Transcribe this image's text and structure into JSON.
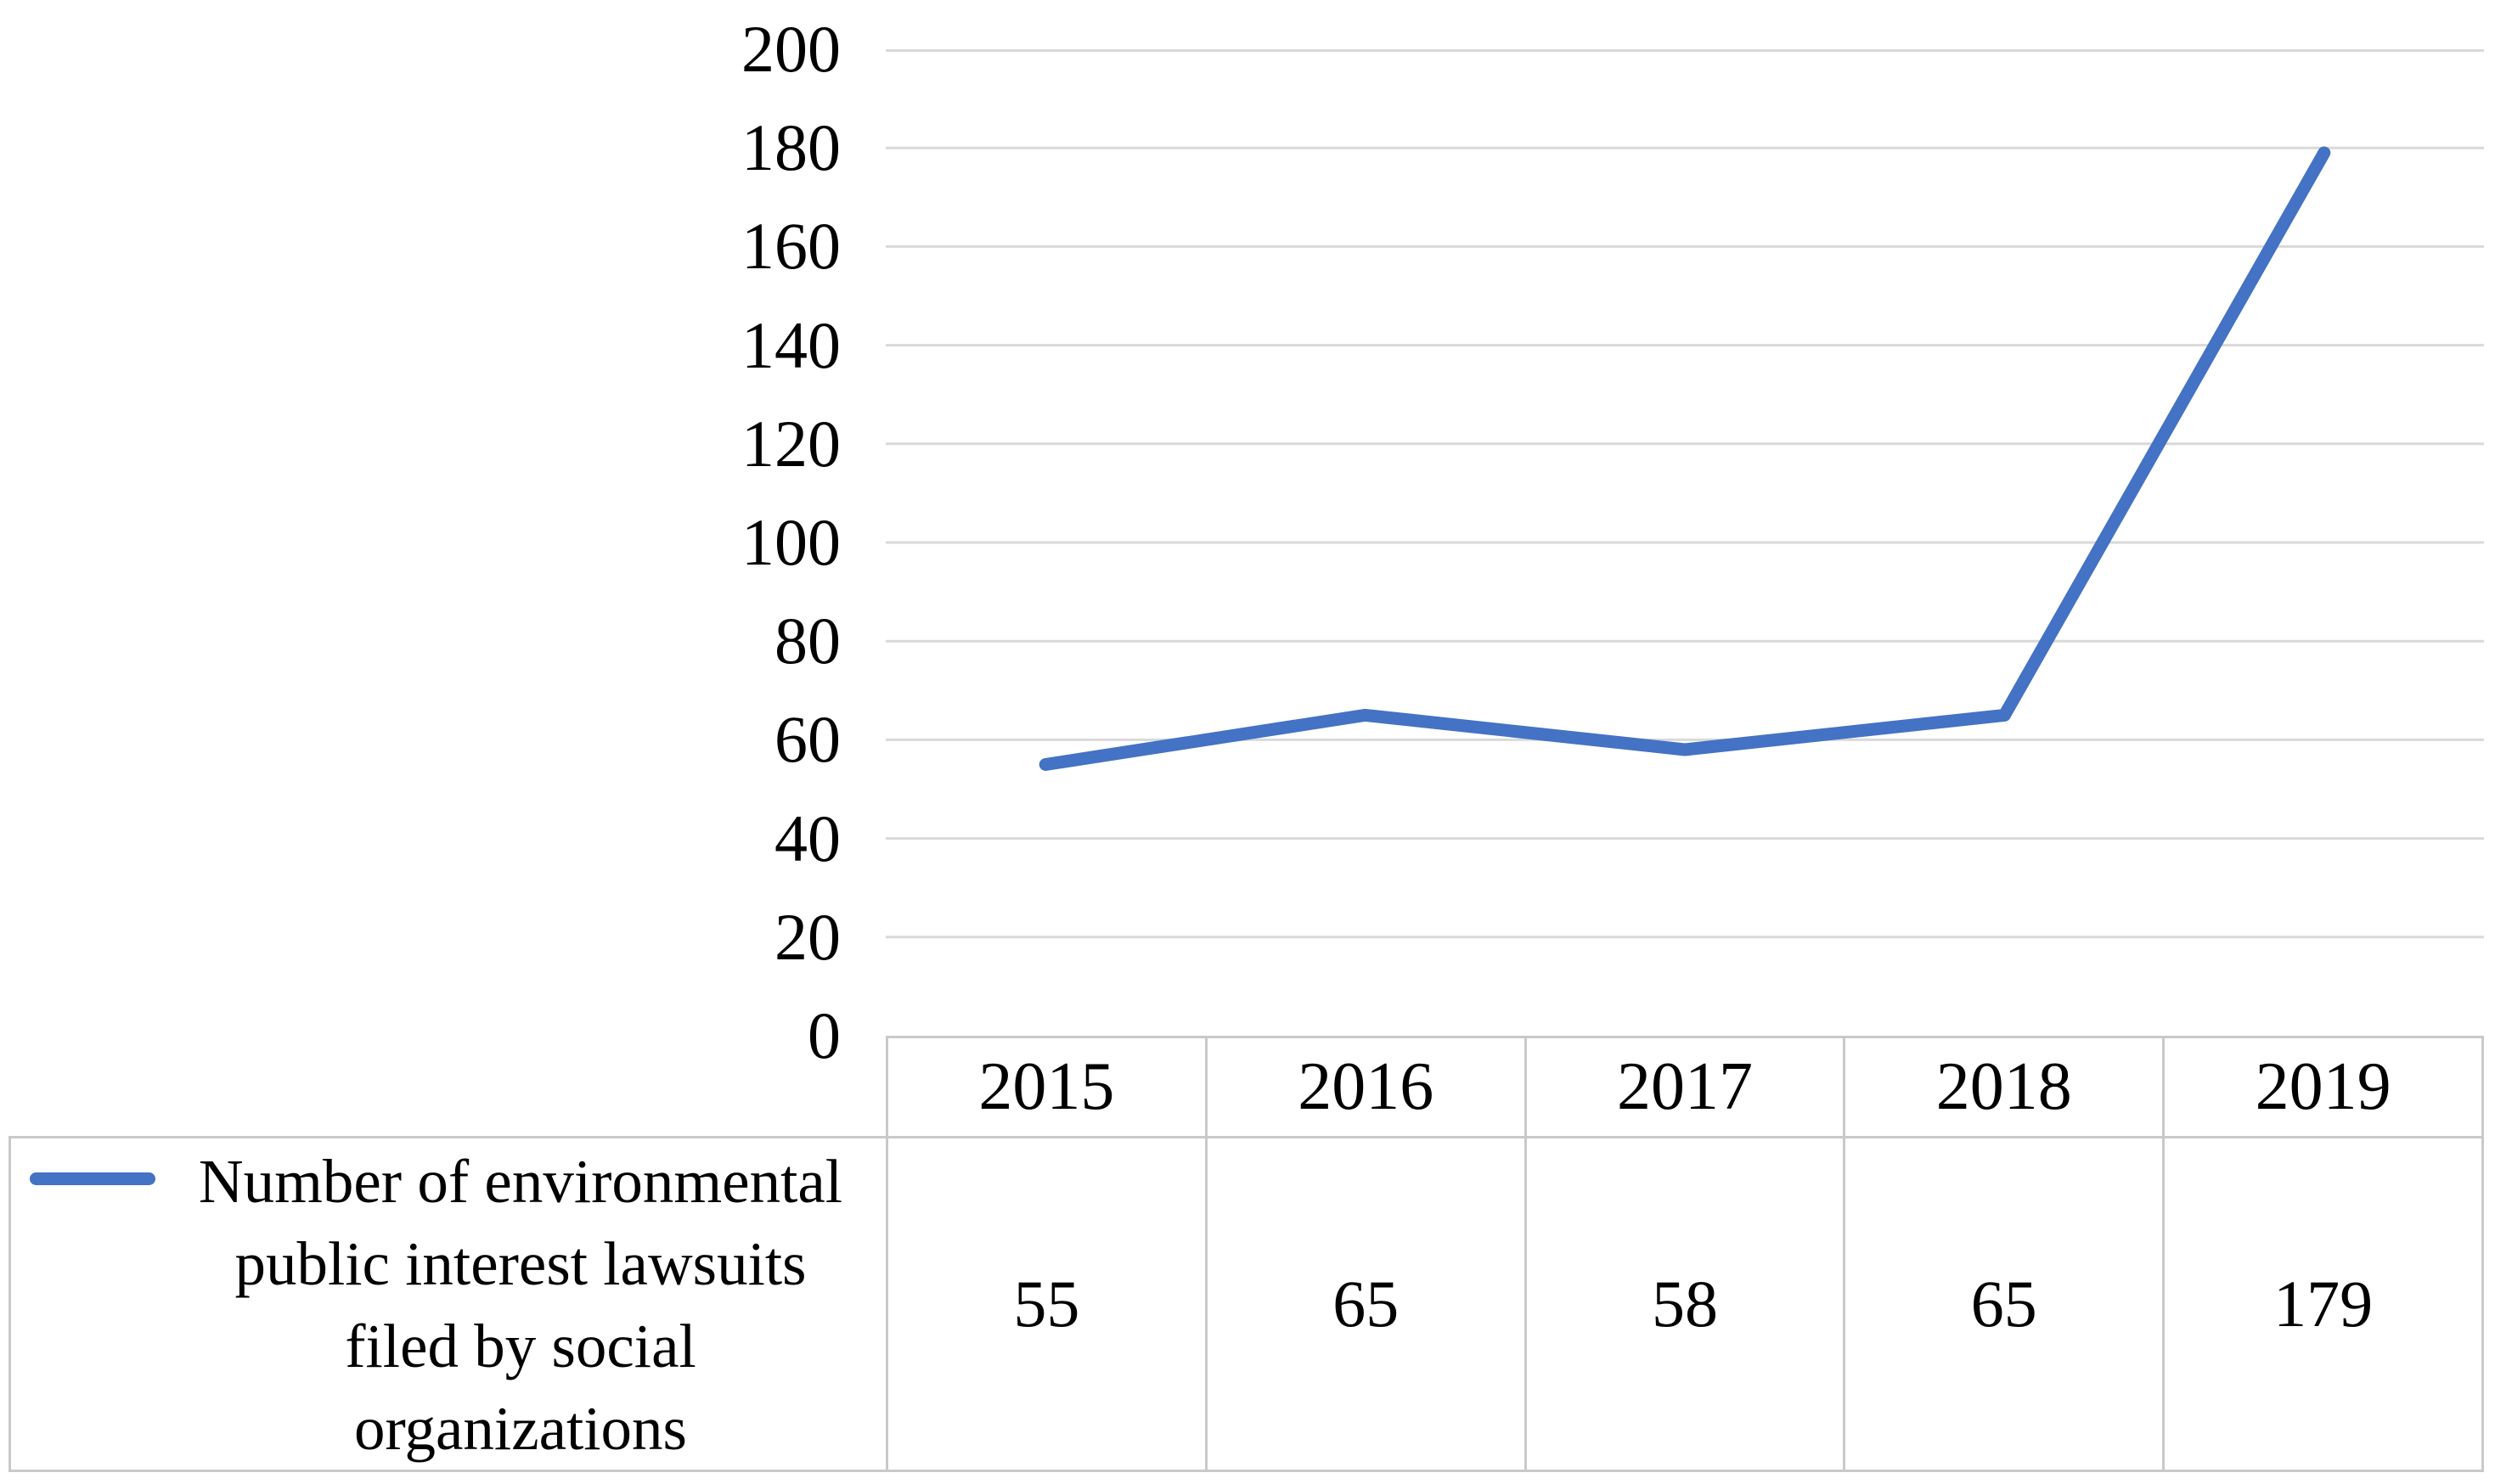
{
  "chart_data": {
    "type": "line",
    "categories": [
      "2015",
      "2016",
      "2017",
      "2018",
      "2019"
    ],
    "series": [
      {
        "name": "Number of environmental public interest lawsuits filed by social organizations",
        "values": [
          55,
          65,
          58,
          65,
          179
        ]
      }
    ],
    "title": "",
    "xlabel": "",
    "ylabel": "",
    "ylim": [
      0,
      200
    ],
    "y_ticks": [
      0,
      20,
      40,
      60,
      80,
      100,
      120,
      140,
      160,
      180,
      200
    ],
    "grid": true,
    "legend_position": "data-table-left",
    "colors": {
      "line": "#4472C4",
      "gridline": "#D9D9D9",
      "table_border": "#C9C9C9",
      "text": "#000000"
    }
  },
  "legend": {
    "label_lines": [
      "Number of environmental",
      "public interest lawsuits",
      "filed by social",
      "organizations"
    ]
  }
}
